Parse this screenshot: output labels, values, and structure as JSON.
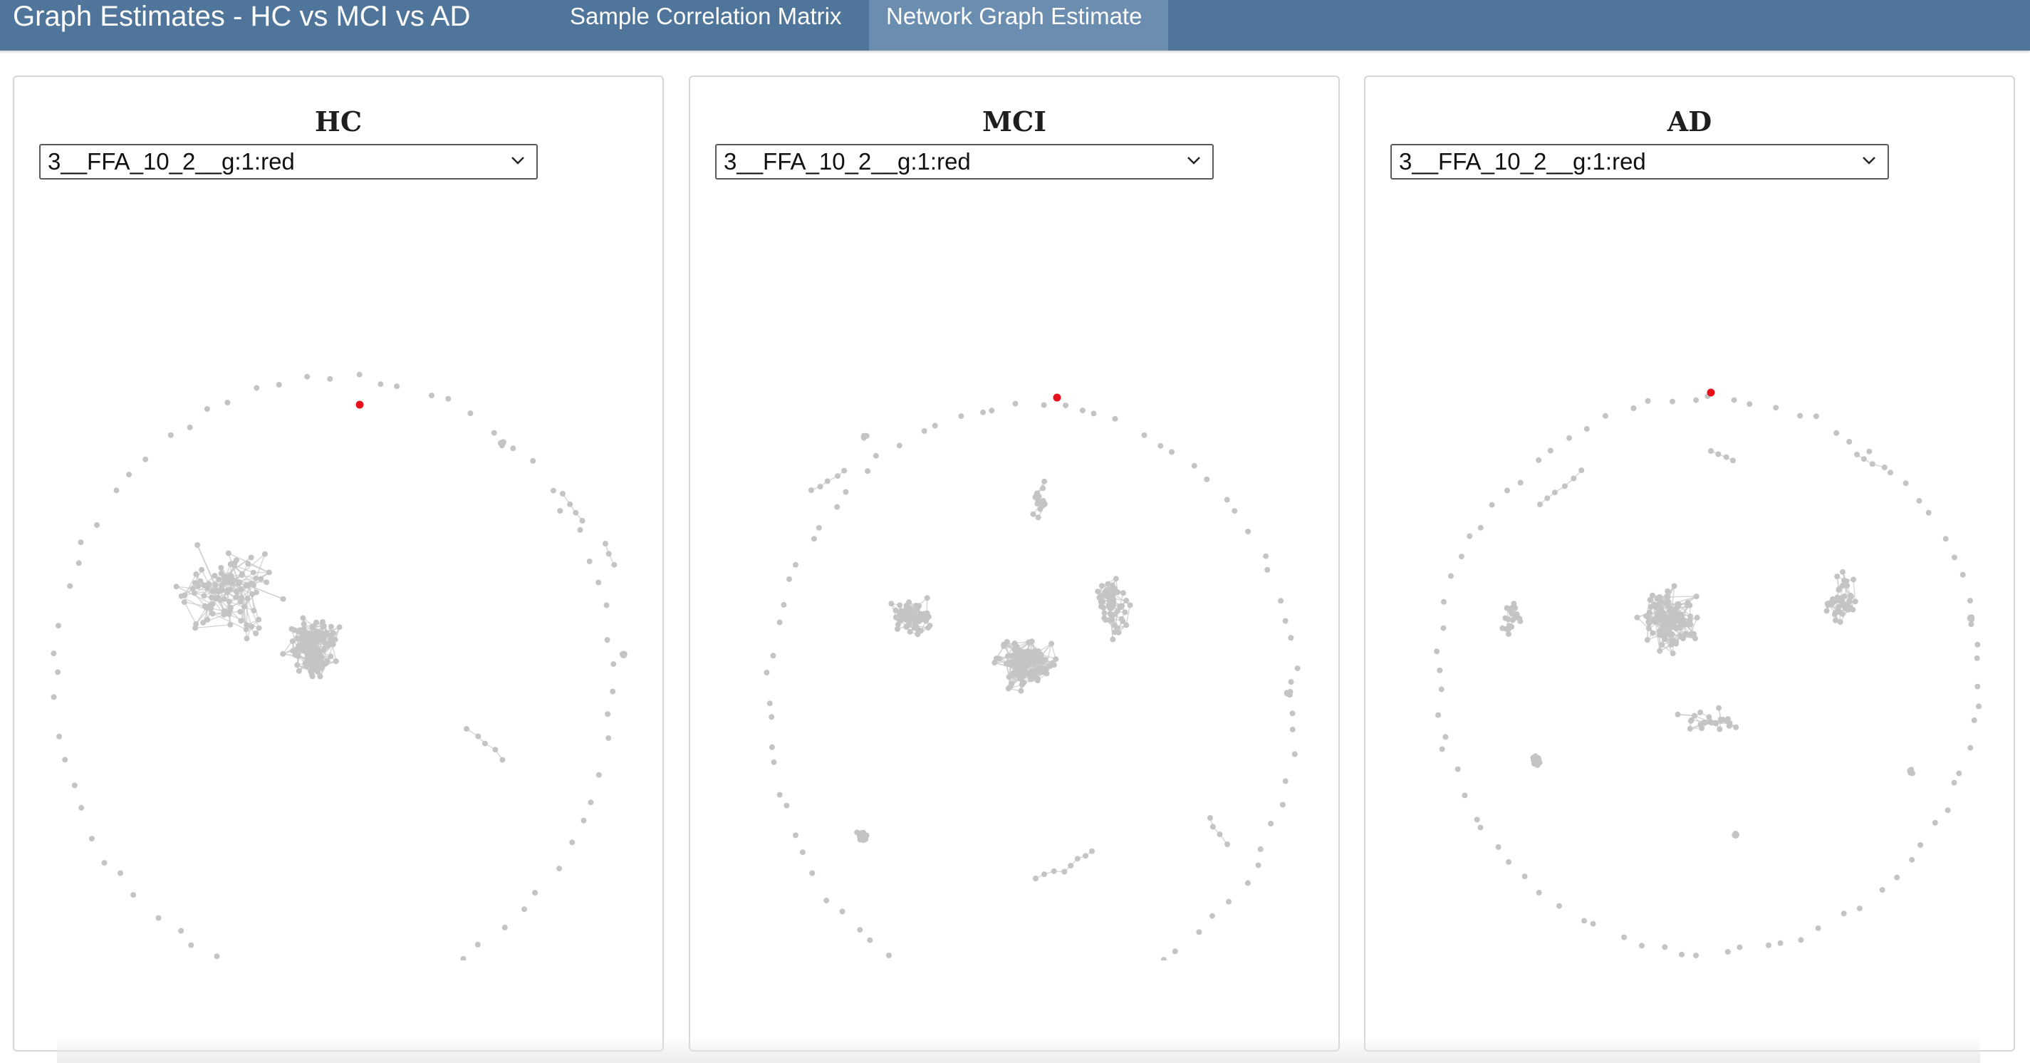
{
  "app": {
    "title": "Graph Estimates - HC vs MCI vs AD",
    "accent_color": "#50759a"
  },
  "tabs": [
    {
      "label": "Sample Correlation Matrix",
      "active": false
    },
    {
      "label": "Network Graph Estimate",
      "active": true
    }
  ],
  "panels": [
    {
      "title": "HC",
      "selected": "3__FFA_10_2__g:1:red",
      "icon": "chevron-down-icon"
    },
    {
      "title": "MCI",
      "selected": "3__FFA_10_2__g:1:red",
      "icon": "chevron-down-icon"
    },
    {
      "title": "AD",
      "selected": "3__FFA_10_2__g:1:red",
      "icon": "chevron-down-icon"
    }
  ],
  "graph_colors": {
    "node": "#c4c4c4",
    "edge": "#c9c9c9",
    "highlight": "#e8101a"
  }
}
